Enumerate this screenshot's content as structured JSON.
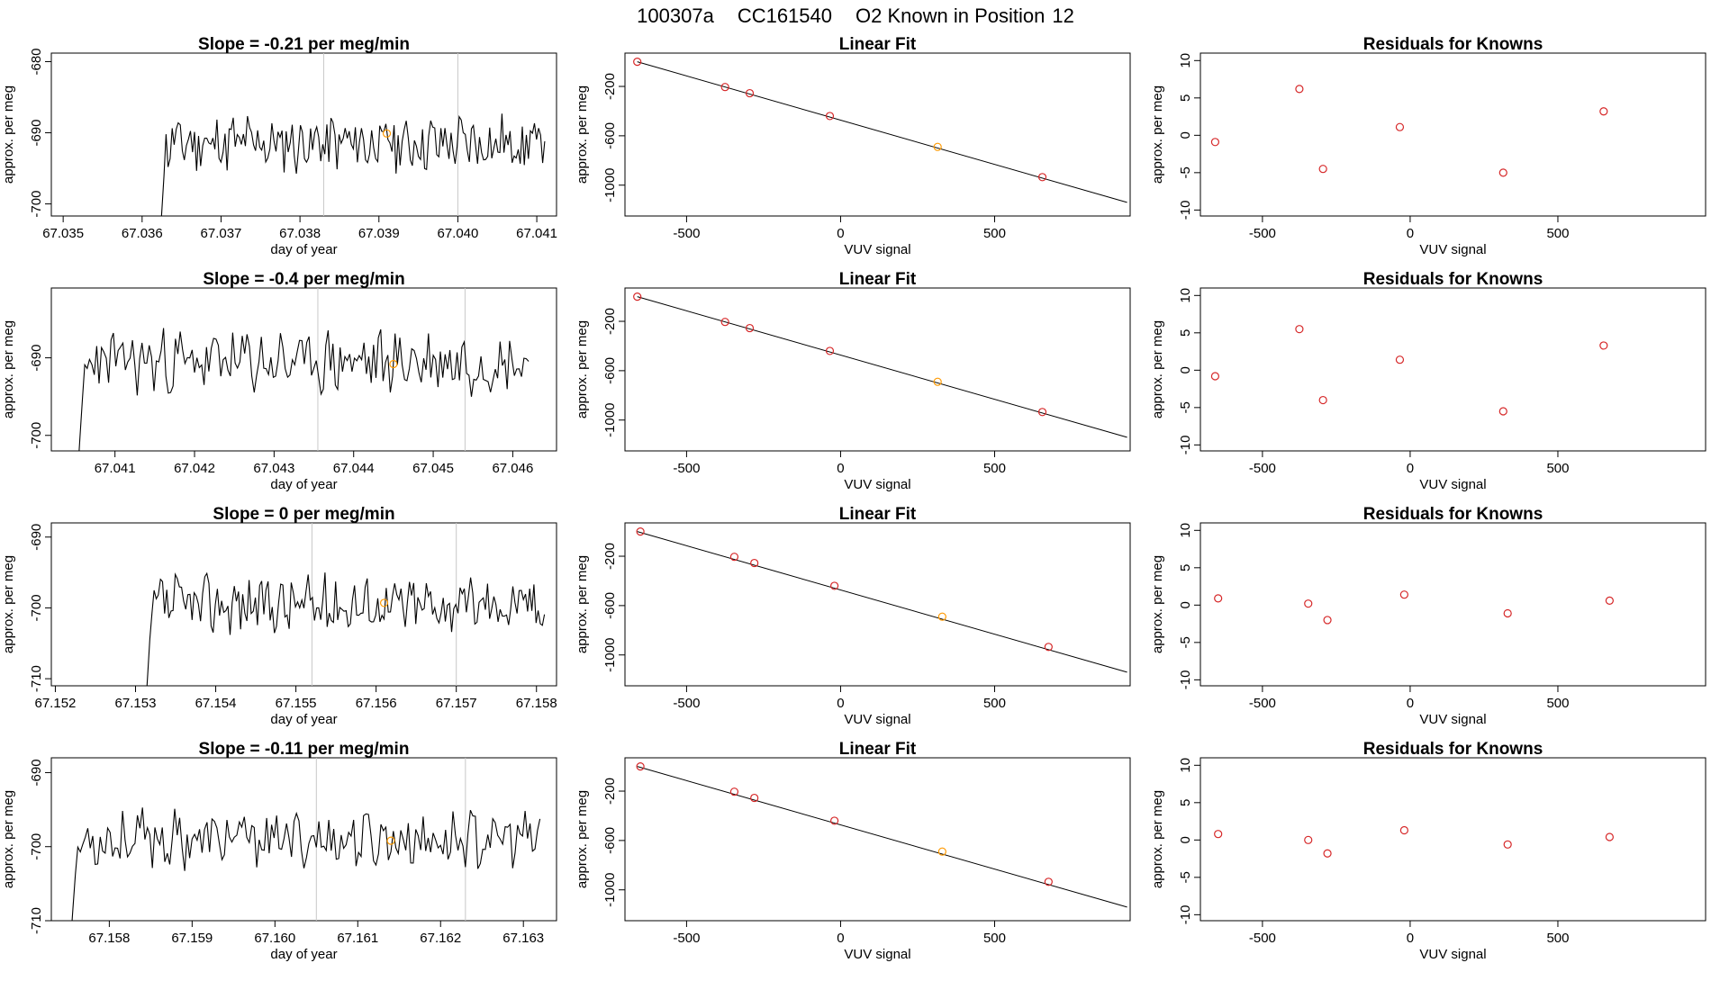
{
  "figure_title": {
    "sample": "100307a",
    "tank": "CC161540",
    "label": "O2 Known in Position",
    "position": "12"
  },
  "colors": {
    "trace": "#000000",
    "fit_point": "#d62728",
    "highlight_point": "#ff9900",
    "marker_line": "#c8c8c8",
    "axes": "#000000"
  },
  "chart_data": [
    {
      "type": "line",
      "name": "drift-row-1",
      "title_prefix": "Slope =",
      "slope": "-0.21",
      "title_suffix": "per meg/min",
      "xlabel": "day of year",
      "ylabel": "approx. per meg",
      "xlim": [
        67.03485,
        67.04125
      ],
      "ylim": [
        -701.7,
        -678.8
      ],
      "xticks": [
        67.035,
        67.036,
        67.037,
        67.038,
        67.039,
        67.04,
        67.041
      ],
      "xtick_labels": [
        "67.035",
        "67.036",
        "67.037",
        "67.038",
        "67.039",
        "67.040",
        "67.041"
      ],
      "yticks": [
        -680,
        -690,
        -700
      ],
      "ytick_labels": [
        "-680",
        "-690",
        "-700"
      ],
      "x_start": 67.0362,
      "x_end": 67.0411,
      "level": -691.5,
      "amplitude": 3.5,
      "seed": 11,
      "markers": [
        67.0383,
        67.04
      ],
      "highlight": {
        "x": 67.0391,
        "y": -690.1
      }
    },
    {
      "type": "line",
      "name": "drift-row-2",
      "title_prefix": "Slope =",
      "slope": "-0.4",
      "title_suffix": "per meg/min",
      "xlabel": "day of year",
      "ylabel": "approx. per meg",
      "xlim": [
        67.0402,
        67.04655
      ],
      "ylim": [
        -702.0,
        -681.0
      ],
      "xticks": [
        67.041,
        67.042,
        67.043,
        67.044,
        67.045,
        67.046
      ],
      "xtick_labels": [
        "67.041",
        "67.042",
        "67.043",
        "67.044",
        "67.045",
        "67.046"
      ],
      "yticks": [
        -690,
        -700
      ],
      "ytick_labels": [
        "-690",
        "-700"
      ],
      "x_start": 67.0405,
      "x_end": 67.0462,
      "level": -690.5,
      "amplitude": 3.5,
      "seed": 23,
      "markers": [
        67.04355,
        67.0454
      ],
      "highlight": {
        "x": 67.0445,
        "y": -690.8
      }
    },
    {
      "type": "line",
      "name": "drift-row-3",
      "title_prefix": "Slope =",
      "slope": "0",
      "title_suffix": "per meg/min",
      "xlabel": "day of year",
      "ylabel": "approx. per meg",
      "xlim": [
        67.15195,
        67.15825
      ],
      "ylim": [
        -711.0,
        -688.0
      ],
      "xticks": [
        67.152,
        67.153,
        67.154,
        67.155,
        67.156,
        67.157,
        67.158
      ],
      "xtick_labels": [
        "67.152",
        "67.153",
        "67.154",
        "67.155",
        "67.156",
        "67.157",
        "67.158"
      ],
      "yticks": [
        -690,
        -700,
        -710
      ],
      "ytick_labels": [
        "-690",
        "-700",
        "-710"
      ],
      "x_start": 67.1531,
      "x_end": 67.1581,
      "level": -699.5,
      "amplitude": 3.5,
      "seed": 37,
      "markers": [
        67.1552,
        67.157
      ],
      "highlight": {
        "x": 67.1561,
        "y": -699.3
      }
    },
    {
      "type": "line",
      "name": "drift-row-4",
      "title_prefix": "Slope =",
      "slope": "-0.11",
      "title_suffix": "per meg/min",
      "xlabel": "day of year",
      "ylabel": "approx. per meg",
      "xlim": [
        67.1573,
        67.1634
      ],
      "ylim": [
        -710.0,
        -688.0
      ],
      "xticks": [
        67.158,
        67.159,
        67.16,
        67.161,
        67.162,
        67.163
      ],
      "xtick_labels": [
        "67.158",
        "67.159",
        "67.160",
        "67.161",
        "67.162",
        "67.163"
      ],
      "yticks": [
        -690,
        -700,
        -710
      ],
      "ytick_labels": [
        "-690",
        "-700",
        "-710"
      ],
      "x_start": 67.1575,
      "x_end": 67.1632,
      "level": -699.0,
      "amplitude": 3.2,
      "seed": 53,
      "markers": [
        67.1605,
        67.1623
      ],
      "highlight": {
        "x": 67.1614,
        "y": -699.2
      }
    },
    {
      "type": "scatter",
      "name": "fit-row-1",
      "title": "Linear Fit",
      "xlabel": "VUV signal",
      "ylabel": "approx. per meg",
      "xlim": [
        -700,
        940
      ],
      "ylim": [
        -1250,
        70
      ],
      "xticks": [
        -500,
        0,
        500
      ],
      "xtick_labels": [
        "-500",
        "0",
        "500"
      ],
      "yticks": [
        -200,
        -600,
        -1000
      ],
      "ytick_labels": [
        "-200",
        "-600",
        "-1000"
      ],
      "line": {
        "x": [
          -660,
          930
        ],
        "y": [
          0,
          -1140
        ]
      },
      "points": [
        {
          "x": -660,
          "y": 0
        },
        {
          "x": -375,
          "y": -205
        },
        {
          "x": -295,
          "y": -255
        },
        {
          "x": -35,
          "y": -440
        },
        {
          "x": 315,
          "y": -690,
          "highlight": true
        },
        {
          "x": 655,
          "y": -935
        }
      ]
    },
    {
      "type": "scatter",
      "name": "fit-row-2",
      "title": "Linear Fit",
      "xlabel": "VUV signal",
      "ylabel": "approx. per meg",
      "xlim": [
        -700,
        940
      ],
      "ylim": [
        -1250,
        70
      ],
      "xticks": [
        -500,
        0,
        500
      ],
      "xtick_labels": [
        "-500",
        "0",
        "500"
      ],
      "yticks": [
        -200,
        -600,
        -1000
      ],
      "ytick_labels": [
        "-200",
        "-600",
        "-1000"
      ],
      "line": {
        "x": [
          -660,
          930
        ],
        "y": [
          0,
          -1140
        ]
      },
      "points": [
        {
          "x": -660,
          "y": 0
        },
        {
          "x": -375,
          "y": -205
        },
        {
          "x": -295,
          "y": -255
        },
        {
          "x": -35,
          "y": -440
        },
        {
          "x": 315,
          "y": -690,
          "highlight": true
        },
        {
          "x": 655,
          "y": -935
        }
      ]
    },
    {
      "type": "scatter",
      "name": "fit-row-3",
      "title": "Linear Fit",
      "xlabel": "VUV signal",
      "ylabel": "approx. per meg",
      "xlim": [
        -700,
        940
      ],
      "ylim": [
        -1250,
        70
      ],
      "xticks": [
        -500,
        0,
        500
      ],
      "xtick_labels": [
        "-500",
        "0",
        "500"
      ],
      "yticks": [
        -200,
        -600,
        -1000
      ],
      "ytick_labels": [
        "-200",
        "-600",
        "-1000"
      ],
      "line": {
        "x": [
          -660,
          930
        ],
        "y": [
          0,
          -1140
        ]
      },
      "points": [
        {
          "x": -650,
          "y": 0
        },
        {
          "x": -345,
          "y": -205
        },
        {
          "x": -280,
          "y": -255
        },
        {
          "x": -20,
          "y": -440
        },
        {
          "x": 330,
          "y": -690,
          "highlight": true
        },
        {
          "x": 675,
          "y": -935
        }
      ]
    },
    {
      "type": "scatter",
      "name": "fit-row-4",
      "title": "Linear Fit",
      "xlabel": "VUV signal",
      "ylabel": "approx. per meg",
      "xlim": [
        -700,
        940
      ],
      "ylim": [
        -1250,
        70
      ],
      "xticks": [
        -500,
        0,
        500
      ],
      "xtick_labels": [
        "-500",
        "0",
        "500"
      ],
      "yticks": [
        -200,
        -600,
        -1000
      ],
      "ytick_labels": [
        "-200",
        "-600",
        "-1000"
      ],
      "line": {
        "x": [
          -660,
          930
        ],
        "y": [
          0,
          -1140
        ]
      },
      "points": [
        {
          "x": -650,
          "y": 0
        },
        {
          "x": -345,
          "y": -205
        },
        {
          "x": -280,
          "y": -255
        },
        {
          "x": -20,
          "y": -440
        },
        {
          "x": 330,
          "y": -690,
          "highlight": true
        },
        {
          "x": 675,
          "y": -935
        }
      ]
    },
    {
      "type": "scatter",
      "name": "resid-row-1",
      "title": "Residuals for Knowns",
      "xlabel": "VUV signal",
      "ylabel": "approx. per meg",
      "xlim": [
        -710,
        1000
      ],
      "ylim": [
        -10.8,
        11
      ],
      "xticks": [
        -500,
        0,
        500
      ],
      "xtick_labels": [
        "-500",
        "0",
        "500"
      ],
      "yticks": [
        10,
        5,
        0,
        -5,
        -10
      ],
      "ytick_labels": [
        "10",
        "5",
        "0",
        "-5",
        "-10"
      ],
      "points": [
        {
          "x": -660,
          "y": -0.9
        },
        {
          "x": -375,
          "y": 6.2
        },
        {
          "x": -295,
          "y": -4.5
        },
        {
          "x": -35,
          "y": 1.1
        },
        {
          "x": 315,
          "y": -5.0
        },
        {
          "x": 655,
          "y": 3.2
        }
      ]
    },
    {
      "type": "scatter",
      "name": "resid-row-2",
      "title": "Residuals for Knowns",
      "xlabel": "VUV signal",
      "ylabel": "approx. per meg",
      "xlim": [
        -710,
        1000
      ],
      "ylim": [
        -10.8,
        11
      ],
      "xticks": [
        -500,
        0,
        500
      ],
      "xtick_labels": [
        "-500",
        "0",
        "500"
      ],
      "yticks": [
        10,
        5,
        0,
        -5,
        -10
      ],
      "ytick_labels": [
        "10",
        "5",
        "0",
        "-5",
        "-10"
      ],
      "points": [
        {
          "x": -660,
          "y": -0.8
        },
        {
          "x": -375,
          "y": 5.5
        },
        {
          "x": -295,
          "y": -4.0
        },
        {
          "x": -35,
          "y": 1.4
        },
        {
          "x": 315,
          "y": -5.5
        },
        {
          "x": 655,
          "y": 3.3
        }
      ]
    },
    {
      "type": "scatter",
      "name": "resid-row-3",
      "title": "Residuals for Knowns",
      "xlabel": "VUV signal",
      "ylabel": "approx. per meg",
      "xlim": [
        -710,
        1000
      ],
      "ylim": [
        -10.8,
        11
      ],
      "xticks": [
        -500,
        0,
        500
      ],
      "xtick_labels": [
        "-500",
        "0",
        "500"
      ],
      "yticks": [
        10,
        5,
        0,
        -5,
        -10
      ],
      "ytick_labels": [
        "10",
        "5",
        "0",
        "-5",
        "-10"
      ],
      "points": [
        {
          "x": -650,
          "y": 0.9
        },
        {
          "x": -345,
          "y": 0.2
        },
        {
          "x": -280,
          "y": -2.0
        },
        {
          "x": -20,
          "y": 1.4
        },
        {
          "x": 330,
          "y": -1.1
        },
        {
          "x": 675,
          "y": 0.6
        }
      ]
    },
    {
      "type": "scatter",
      "name": "resid-row-4",
      "title": "Residuals for Knowns",
      "xlabel": "VUV signal",
      "ylabel": "approx. per meg",
      "xlim": [
        -710,
        1000
      ],
      "ylim": [
        -10.8,
        11
      ],
      "xticks": [
        -500,
        0,
        500
      ],
      "xtick_labels": [
        "-500",
        "0",
        "500"
      ],
      "yticks": [
        10,
        5,
        0,
        -5,
        -10
      ],
      "ytick_labels": [
        "10",
        "5",
        "0",
        "-5",
        "-10"
      ],
      "points": [
        {
          "x": -650,
          "y": 0.8
        },
        {
          "x": -345,
          "y": 0.0
        },
        {
          "x": -280,
          "y": -1.8
        },
        {
          "x": -20,
          "y": 1.3
        },
        {
          "x": 330,
          "y": -0.6
        },
        {
          "x": 675,
          "y": 0.4
        }
      ]
    }
  ]
}
